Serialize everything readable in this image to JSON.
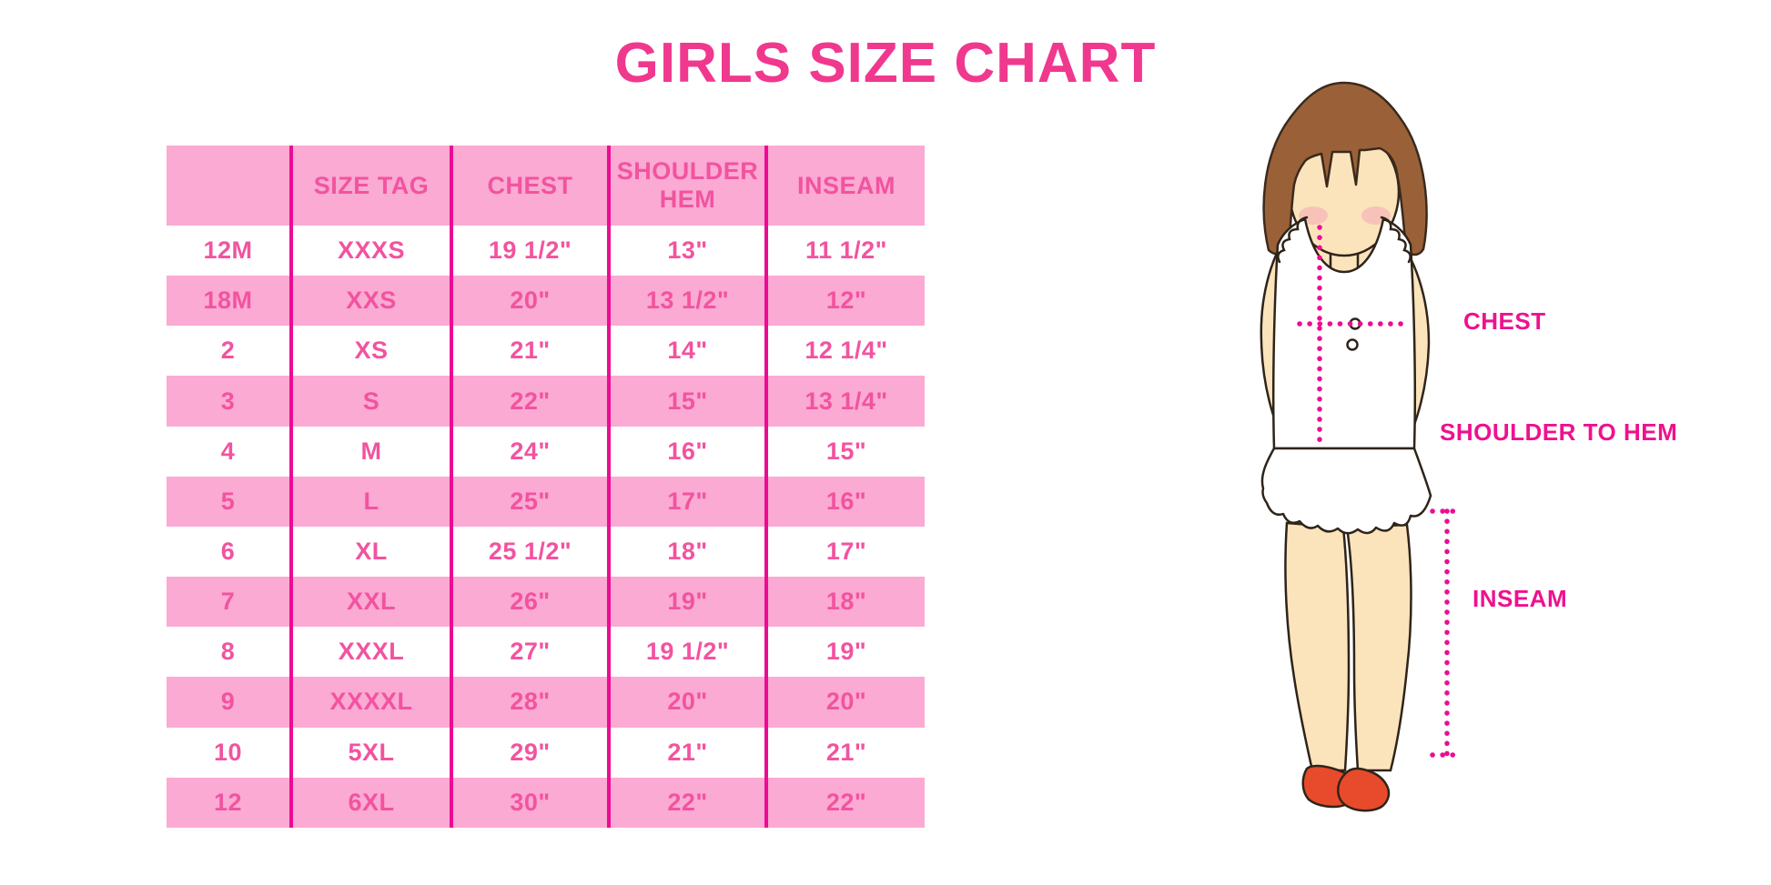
{
  "title": "GIRLS SIZE CHART",
  "colors": {
    "title_pink": "#f0388e",
    "table_text_pink": "#f2539f",
    "band_light_pink": "#fbaad3",
    "divider_magenta": "#ec0c94",
    "label_magenta": "#ee118f",
    "hair_brown": "#9a6138",
    "skin": "#fbe4bc",
    "shoe_red": "#e74b2b"
  },
  "chart_data": {
    "type": "table",
    "title": "GIRLS SIZE CHART",
    "columns": [
      "",
      "SIZE TAG",
      "CHEST",
      "SHOULDER HEM",
      "INSEAM"
    ],
    "rows": [
      [
        "12M",
        "XXXS",
        "19 1/2\"",
        "13\"",
        "11 1/2\""
      ],
      [
        "18M",
        "XXS",
        "20\"",
        "13 1/2\"",
        "12\""
      ],
      [
        "2",
        "XS",
        "21\"",
        "14\"",
        "12 1/4\""
      ],
      [
        "3",
        "S",
        "22\"",
        "15\"",
        "13 1/4\""
      ],
      [
        "4",
        "M",
        "24\"",
        "16\"",
        "15\""
      ],
      [
        "5",
        "L",
        "25\"",
        "17\"",
        "16\""
      ],
      [
        "6",
        "XL",
        "25 1/2\"",
        "18\"",
        "17\""
      ],
      [
        "7",
        "XXL",
        "26\"",
        "19\"",
        "18\""
      ],
      [
        "8",
        "XXXL",
        "27\"",
        "19 1/2\"",
        "19\""
      ],
      [
        "9",
        "XXXXL",
        "28\"",
        "20\"",
        "20\""
      ],
      [
        "10",
        "5XL",
        "29\"",
        "21\"",
        "21\""
      ],
      [
        "12",
        "6XL",
        "30\"",
        "22\"",
        "22\""
      ]
    ],
    "layout": {
      "row_banding": "alternating pink/white",
      "grid": "vertical magenta dividers only"
    }
  },
  "diagram": {
    "figure": "girl-illustration",
    "labels": {
      "chest": "CHEST",
      "shoulder_to_hem": "SHOULDER TO HEM",
      "inseam": "INSEAM"
    }
  }
}
